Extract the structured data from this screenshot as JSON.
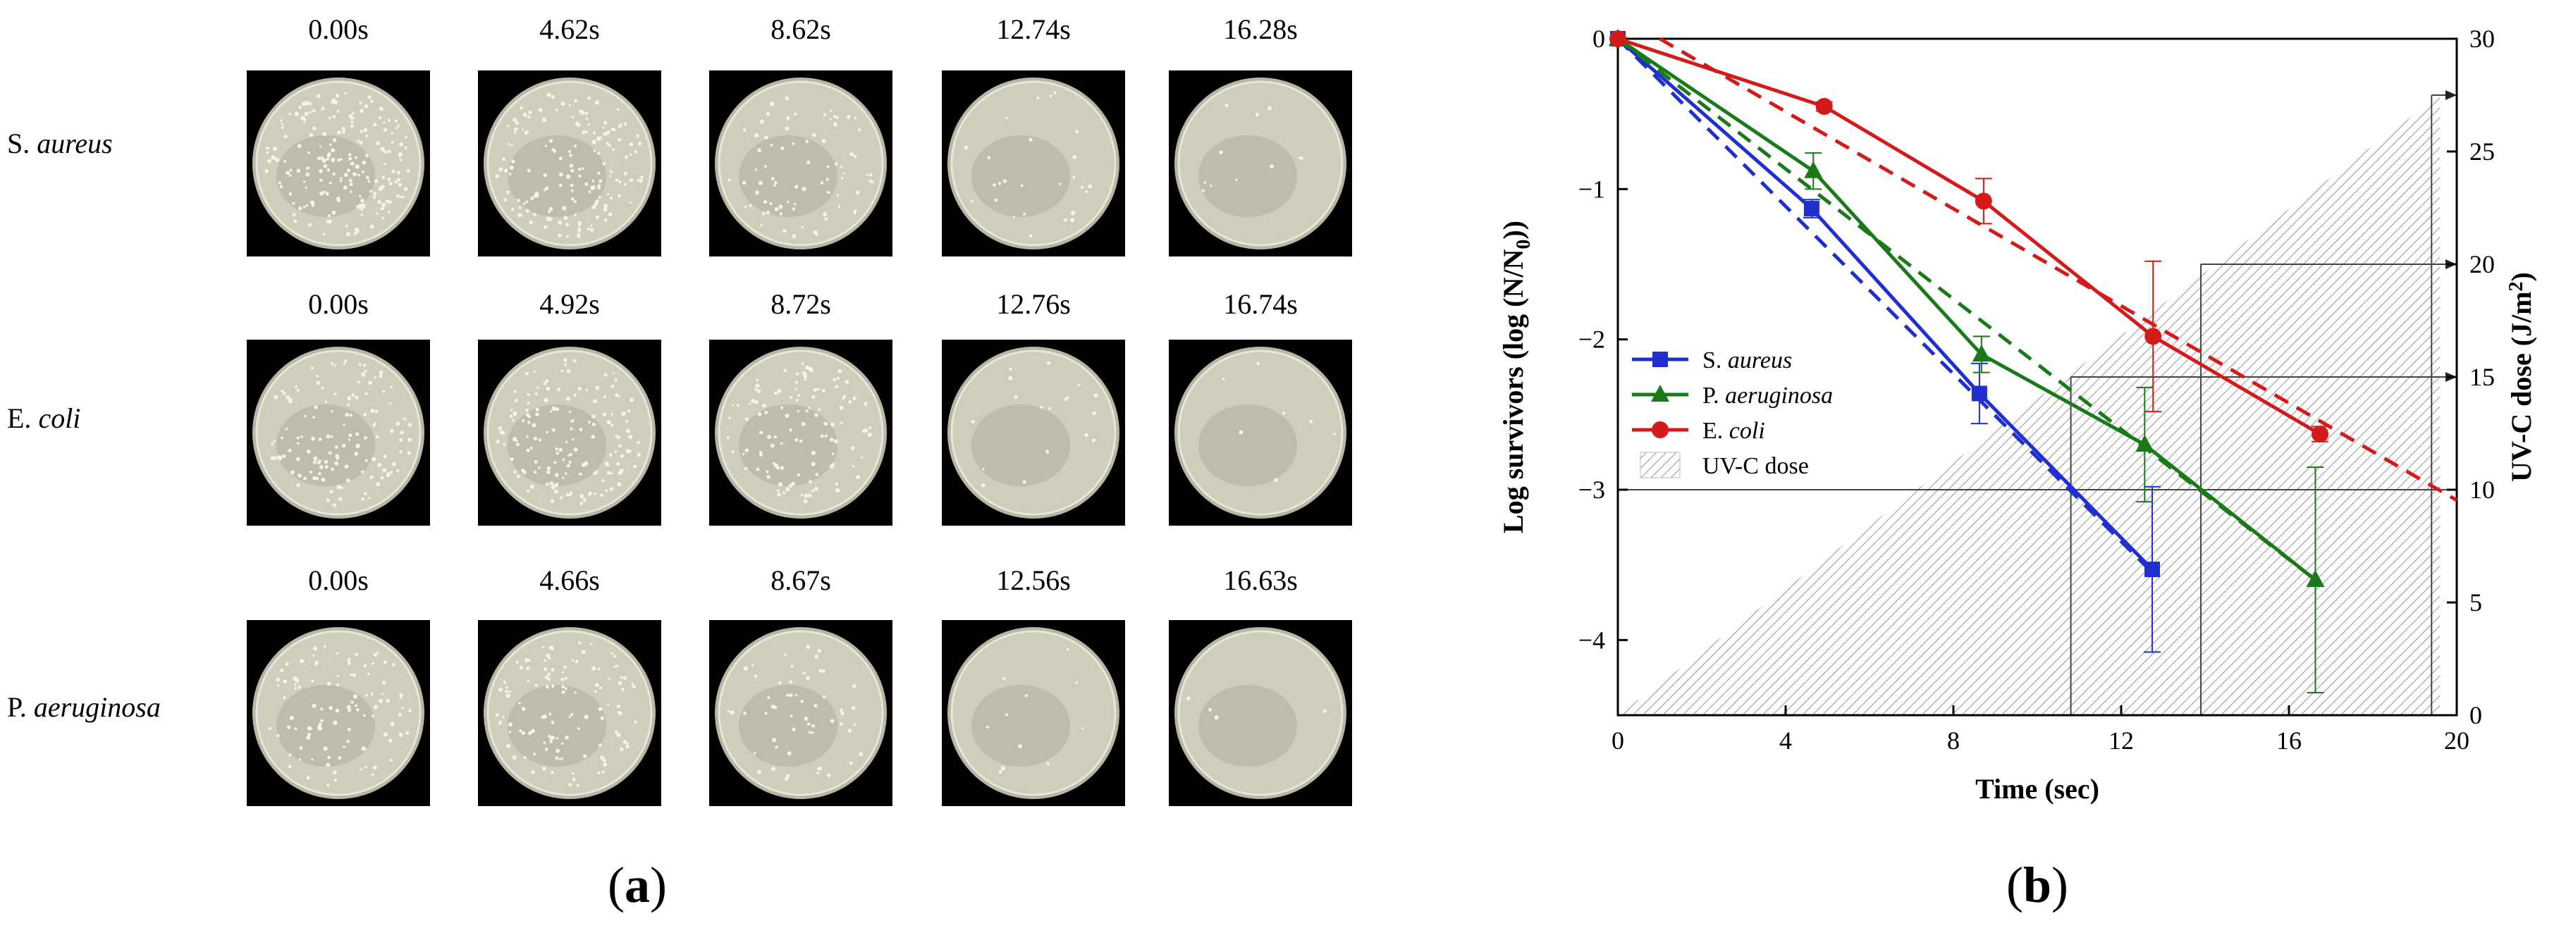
{
  "panel_a": {
    "label": "a",
    "rows": [
      {
        "organism_prefix": "S.",
        "organism_italic": "aureus",
        "times": [
          "0.00s",
          "4.62s",
          "8.62s",
          "12.74s",
          "16.28s"
        ],
        "colony_density": [
          0.9,
          0.75,
          0.35,
          0.12,
          0.05
        ]
      },
      {
        "organism_prefix": "E.",
        "organism_italic": "coli",
        "times": [
          "0.00s",
          "4.92s",
          "8.72s",
          "12.76s",
          "16.74s"
        ],
        "colony_density": [
          0.6,
          0.7,
          0.55,
          0.08,
          0.03
        ]
      },
      {
        "organism_prefix": "P.",
        "organism_italic": "aeruginosa",
        "times": [
          "0.00s",
          "4.66s",
          "8.67s",
          "12.56s",
          "16.63s"
        ],
        "colony_density": [
          0.45,
          0.55,
          0.25,
          0.05,
          0.02
        ]
      }
    ]
  },
  "panel_b": {
    "label": "b"
  },
  "chart_data": {
    "type": "line",
    "xlabel": "Time (sec)",
    "ylabel_main": "Log survivors (log (N/N",
    "ylabel_sub": "0",
    "ylabel_end": "))",
    "y2label_main": "UV-C dose (J/m",
    "y2label_sup": "2",
    "y2label_end": ")",
    "xlim": [
      0,
      20
    ],
    "ylim": [
      -4.5,
      0
    ],
    "y2lim": [
      0,
      30
    ],
    "xticks": [
      0,
      4,
      8,
      12,
      16,
      20
    ],
    "yticks": [
      0,
      -1,
      -2,
      -3,
      -4
    ],
    "y2ticks": [
      0,
      5,
      10,
      15,
      20,
      25,
      30
    ],
    "legend_position": "center-left",
    "series": [
      {
        "name_prefix": "S.",
        "name_italic": "aureus",
        "color": "#1f2fd0",
        "marker": "square",
        "x": [
          0,
          4.62,
          8.62,
          12.74
        ],
        "y": [
          0,
          -1.13,
          -2.36,
          -3.53
        ],
        "err": [
          0,
          0.06,
          0.2,
          0.55
        ],
        "fit": {
          "x": [
            0,
            12.74
          ],
          "y": [
            0,
            -3.55
          ]
        }
      },
      {
        "name_prefix": "P.",
        "name_italic": "aeruginosa",
        "color": "#1a7a1a",
        "marker": "triangle",
        "x": [
          0,
          4.66,
          8.67,
          12.56,
          16.63
        ],
        "y": [
          0,
          -0.88,
          -2.1,
          -2.7,
          -3.6
        ],
        "err": [
          0,
          0.12,
          0.12,
          0.38,
          0.75
        ],
        "fit": {
          "x": [
            0,
            16.63
          ],
          "y": [
            0,
            -3.6
          ]
        }
      },
      {
        "name_prefix": "E.",
        "name_italic": "coli",
        "color": "#d41a1a",
        "marker": "circle",
        "x": [
          0,
          4.92,
          8.72,
          12.76,
          16.74
        ],
        "y": [
          0,
          -0.45,
          -1.08,
          -1.98,
          -2.63
        ],
        "err": [
          0,
          0.03,
          0.15,
          0.5,
          0.05
        ],
        "fit": {
          "x": [
            1.0,
            20
          ],
          "y": [
            0,
            -3.07
          ]
        }
      }
    ],
    "uvc_dose": {
      "name": "UV-C dose",
      "x": [
        0,
        19.6
      ],
      "dose": [
        0,
        27.5
      ]
    },
    "guide_lines": [
      {
        "time": 10.8,
        "dose": 15
      },
      {
        "time": 13.9,
        "dose": 20
      },
      {
        "time": 19.4,
        "dose": 27.5
      }
    ],
    "ref_hline_y": -3
  }
}
